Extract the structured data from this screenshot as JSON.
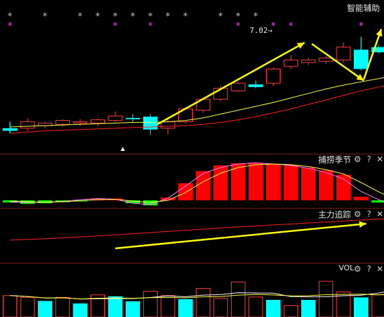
{
  "main_panel": {
    "title": "智能辅助",
    "price_annotation": "7.02"
  },
  "indicator_panels": [
    {
      "title": "捕捞季节",
      "controls": {
        "settings": "⚙",
        "help": "?",
        "close": "✕"
      }
    },
    {
      "title": "主力追踪",
      "controls": {
        "settings": "⚙",
        "help": "?",
        "close": "✕"
      }
    },
    {
      "title": "VOL",
      "controls": {
        "settings": "⚙",
        "help": "?",
        "close": "✕"
      }
    }
  ],
  "signal_marker": "*",
  "colors": {
    "background": "#000000",
    "up_candle": "#ff3c3c",
    "down_candle": "#00ffff",
    "arrow": "#ffff00",
    "ma_fast": "#ffff40",
    "ma_slow": "#ff2020",
    "star_white": "#c8c8c8",
    "star_magenta": "#ff40ff",
    "macd_red": "#ff0000",
    "macd_green": "#00ff00",
    "divider": "#7a1a1a"
  },
  "chart_data": [
    {
      "type": "candlestick",
      "title": "智能辅助",
      "annotation": "7.02",
      "candles": [
        {
          "o": 5.7,
          "h": 5.8,
          "l": 5.62,
          "c": 5.66
        },
        {
          "o": 5.7,
          "h": 5.85,
          "l": 5.66,
          "c": 5.8
        },
        {
          "o": 5.74,
          "h": 5.8,
          "l": 5.7,
          "c": 5.78
        },
        {
          "o": 5.76,
          "h": 5.84,
          "l": 5.72,
          "c": 5.82
        },
        {
          "o": 5.78,
          "h": 5.84,
          "l": 5.74,
          "c": 5.8
        },
        {
          "o": 5.78,
          "h": 5.85,
          "l": 5.74,
          "c": 5.83
        },
        {
          "o": 5.82,
          "h": 5.96,
          "l": 5.8,
          "c": 5.89
        },
        {
          "o": 5.86,
          "h": 5.92,
          "l": 5.8,
          "c": 5.84
        },
        {
          "o": 5.88,
          "h": 5.92,
          "l": 5.6,
          "c": 5.68
        },
        {
          "o": 5.7,
          "h": 5.84,
          "l": 5.6,
          "c": 5.8
        },
        {
          "o": 5.8,
          "h": 6.03,
          "l": 5.78,
          "c": 6.0
        },
        {
          "o": 5.98,
          "h": 6.18,
          "l": 5.94,
          "c": 6.15
        },
        {
          "o": 6.15,
          "h": 6.36,
          "l": 6.12,
          "c": 6.32
        },
        {
          "o": 6.28,
          "h": 6.42,
          "l": 6.26,
          "c": 6.4
        },
        {
          "o": 6.38,
          "h": 6.44,
          "l": 6.32,
          "c": 6.34
        },
        {
          "o": 6.4,
          "h": 6.64,
          "l": 6.36,
          "c": 6.62
        },
        {
          "o": 6.66,
          "h": 6.84,
          "l": 6.62,
          "c": 6.76
        },
        {
          "o": 6.72,
          "h": 6.8,
          "l": 6.68,
          "c": 6.76
        },
        {
          "o": 6.74,
          "h": 6.82,
          "l": 6.7,
          "c": 6.79
        },
        {
          "o": 6.76,
          "h": 7.03,
          "l": 6.72,
          "c": 6.96
        },
        {
          "o": 6.92,
          "h": 7.12,
          "l": 6.6,
          "c": 6.62
        },
        {
          "o": 6.96,
          "h": 6.99,
          "l": 6.86,
          "c": 6.88
        },
        {
          "o": 6.86,
          "h": 6.88,
          "l": 6.6,
          "c": 6.65
        },
        {
          "o": 6.62,
          "h": 6.8,
          "l": 6.46,
          "c": 6.68
        },
        {
          "o": 6.8,
          "h": 6.84,
          "l": 6.54,
          "c": 6.56
        },
        {
          "o": 6.48,
          "h": 6.92,
          "l": 6.4,
          "c": 6.7
        }
      ],
      "signals_white": [
        0,
        2,
        4,
        5,
        6,
        7,
        8,
        9,
        10,
        12,
        13,
        14
      ],
      "signals_magenta": [
        0,
        6,
        8,
        13,
        15,
        16,
        20,
        22
      ],
      "ma_fast": [
        5.72,
        5.73,
        5.74,
        5.75,
        5.76,
        5.77,
        5.78,
        5.79,
        5.79,
        5.8,
        5.82,
        5.86,
        5.92,
        5.98,
        6.04,
        6.1,
        6.17,
        6.24,
        6.31,
        6.37,
        6.42,
        6.47,
        6.52,
        6.55,
        6.57,
        6.58
      ],
      "ma_slow": [
        5.62,
        5.64,
        5.66,
        5.67,
        5.68,
        5.69,
        5.7,
        5.71,
        5.72,
        5.73,
        5.74,
        5.76,
        5.79,
        5.83,
        5.88,
        5.94,
        6.0,
        6.07,
        6.14,
        6.21,
        6.28,
        6.34,
        6.4,
        6.45,
        6.5,
        6.54
      ]
    },
    {
      "type": "bar",
      "title": "捕捞季节",
      "values": [
        -0.06,
        -0.1,
        -0.08,
        -0.05,
        -0.03,
        0.05,
        0.05,
        -0.08,
        -0.14,
        0.08,
        0.48,
        0.82,
        0.98,
        1.04,
        1.06,
        1.02,
        0.98,
        0.92,
        0.84,
        0.72,
        0.1,
        -0.06,
        -0.12,
        -0.18
      ],
      "line_fast": [
        -0.05,
        -0.06,
        -0.05,
        -0.03,
        0.02,
        0.05,
        0.03,
        -0.08,
        -0.12,
        0.06,
        0.4,
        0.75,
        0.92,
        1.02,
        1.05,
        1.02,
        0.98,
        0.9,
        0.78,
        0.6,
        0.25,
        0.02,
        -0.12,
        -0.18
      ],
      "line_slow": [
        -0.02,
        -0.04,
        -0.05,
        -0.04,
        -0.01,
        0.02,
        0.03,
        -0.02,
        -0.06,
        0.0,
        0.22,
        0.52,
        0.76,
        0.92,
        1.0,
        1.02,
        1.0,
        0.95,
        0.86,
        0.74,
        0.5,
        0.24,
        0.02,
        -0.12
      ]
    },
    {
      "type": "line",
      "title": "主力追踪",
      "values": [
        0.0,
        0.04,
        0.09,
        0.14,
        0.2,
        0.26,
        0.32,
        0.39,
        0.46,
        0.53,
        0.6,
        0.67,
        0.74,
        0.8,
        0.86,
        0.92,
        0.98,
        1.04,
        1.1,
        1.16,
        1.22,
        1.28,
        1.34,
        1.4,
        1.46
      ]
    },
    {
      "type": "bar",
      "title": "VOL",
      "values": [
        {
          "v": 60,
          "up": true
        },
        {
          "v": 55,
          "up": true
        },
        {
          "v": 45,
          "up": false
        },
        {
          "v": 55,
          "up": true
        },
        {
          "v": 38,
          "up": false
        },
        {
          "v": 62,
          "up": true
        },
        {
          "v": 58,
          "up": false
        },
        {
          "v": 44,
          "up": false
        },
        {
          "v": 72,
          "up": true
        },
        {
          "v": 60,
          "up": true
        },
        {
          "v": 50,
          "up": false
        },
        {
          "v": 80,
          "up": true
        },
        {
          "v": 52,
          "up": true
        },
        {
          "v": 98,
          "up": true
        },
        {
          "v": 56,
          "up": true
        },
        {
          "v": 48,
          "up": false
        },
        {
          "v": 32,
          "up": true
        },
        {
          "v": 48,
          "up": false
        },
        {
          "v": 100,
          "up": true
        },
        {
          "v": 70,
          "up": true
        },
        {
          "v": 55,
          "up": false
        },
        {
          "v": 62,
          "up": true
        },
        {
          "v": 100,
          "up": false
        },
        {
          "v": 110,
          "up": false
        },
        {
          "v": 75,
          "up": true
        }
      ]
    }
  ]
}
